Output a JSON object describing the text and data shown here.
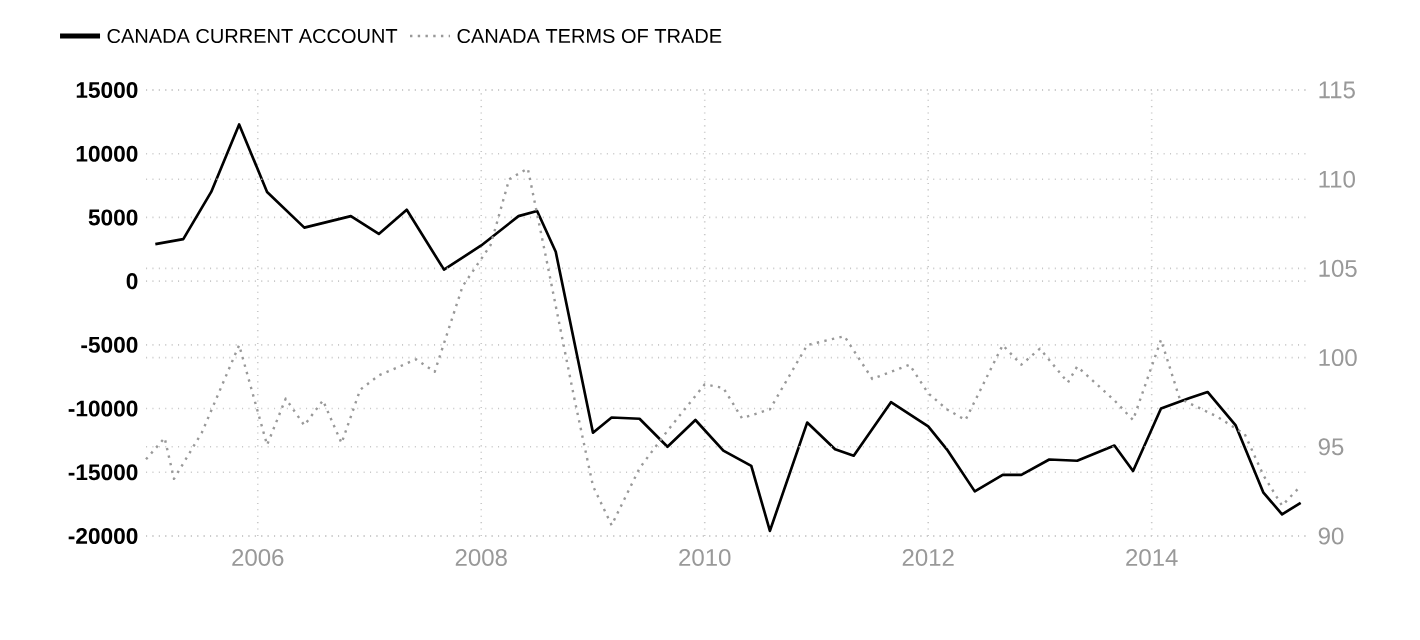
{
  "chart_data": {
    "type": "line",
    "xlim": [
      "2005-01",
      "2015-06"
    ],
    "xticks": [
      "2006",
      "2008",
      "2010",
      "2012",
      "2014"
    ],
    "ylim": [
      -20000,
      15000
    ],
    "yticks": [
      -20000,
      -15000,
      -10000,
      -5000,
      0,
      5000,
      10000,
      15000
    ],
    "y2lim": [
      90,
      115
    ],
    "y2ticks": [
      90,
      95,
      100,
      105,
      110,
      115
    ],
    "grid": true,
    "legend": "top left",
    "series": [
      {
        "name": "CANADA CURRENT ACCOUNT",
        "color": "#000000",
        "axis": "y",
        "line_style": "solid",
        "x": [
          "2005-02",
          "2005-05",
          "2005-08",
          "2005-11",
          "2006-02",
          "2006-06",
          "2006-11",
          "2007-02",
          "2007-05",
          "2007-09",
          "2008-01",
          "2008-05",
          "2008-07",
          "2008-09",
          "2009-01",
          "2009-03",
          "2009-06",
          "2009-09",
          "2009-12",
          "2010-03",
          "2010-06",
          "2010-08",
          "2010-12",
          "2011-03",
          "2011-05",
          "2011-09",
          "2012-01",
          "2012-03",
          "2012-06",
          "2012-09",
          "2012-11",
          "2013-02",
          "2013-05",
          "2013-09",
          "2013-11",
          "2014-02",
          "2014-05",
          "2014-07",
          "2014-10",
          "2015-01",
          "2015-03",
          "2015-05"
        ],
        "values": [
          2900,
          3300,
          7000,
          12300,
          7000,
          4200,
          5100,
          3700,
          5600,
          900,
          2800,
          5100,
          5500,
          2300,
          -11900,
          -10700,
          -10800,
          -13000,
          -10900,
          -13300,
          -14500,
          -19600,
          -11100,
          -13200,
          -13700,
          -9500,
          -11400,
          -13200,
          -16500,
          -15200,
          -15200,
          -14000,
          -14100,
          -12900,
          -14900,
          -10000,
          -9200,
          -8700,
          -11300,
          -16600,
          -18300,
          -17400
        ]
      },
      {
        "name": "CANADA TERMS OF TRADE",
        "color": "#999999",
        "axis": "y2",
        "line_style": "dotted",
        "x": [
          "2005-01",
          "2005-03",
          "2005-04",
          "2005-07",
          "2005-11",
          "2006-02",
          "2006-04",
          "2006-06",
          "2006-08",
          "2006-10",
          "2006-12",
          "2007-02",
          "2007-06",
          "2007-08",
          "2007-11",
          "2008-02",
          "2008-04",
          "2008-06",
          "2008-08",
          "2008-11",
          "2009-01",
          "2009-03",
          "2009-06",
          "2009-09",
          "2010-01",
          "2010-03",
          "2010-05",
          "2010-08",
          "2010-12",
          "2011-04",
          "2011-07",
          "2011-11",
          "2012-01",
          "2012-03",
          "2012-05",
          "2012-09",
          "2012-11",
          "2013-01",
          "2013-04",
          "2013-05",
          "2013-09",
          "2013-11",
          "2014-02",
          "2014-04",
          "2014-08",
          "2014-11",
          "2015-01",
          "2015-03",
          "2015-05"
        ],
        "values": [
          94.3,
          95.5,
          93.2,
          95.8,
          100.7,
          95.1,
          97.7,
          96.2,
          97.6,
          95.2,
          98.2,
          99.0,
          99.9,
          99.2,
          104.0,
          106.3,
          110.0,
          110.6,
          105.5,
          97.7,
          92.8,
          90.6,
          93.8,
          95.9,
          98.5,
          98.3,
          96.6,
          97.1,
          100.7,
          101.2,
          98.8,
          99.6,
          98.0,
          97.1,
          96.5,
          100.7,
          99.6,
          100.5,
          98.6,
          99.5,
          97.6,
          96.5,
          101.0,
          97.7,
          96.7,
          95.7,
          93.4,
          91.7,
          92.8
        ]
      }
    ]
  }
}
